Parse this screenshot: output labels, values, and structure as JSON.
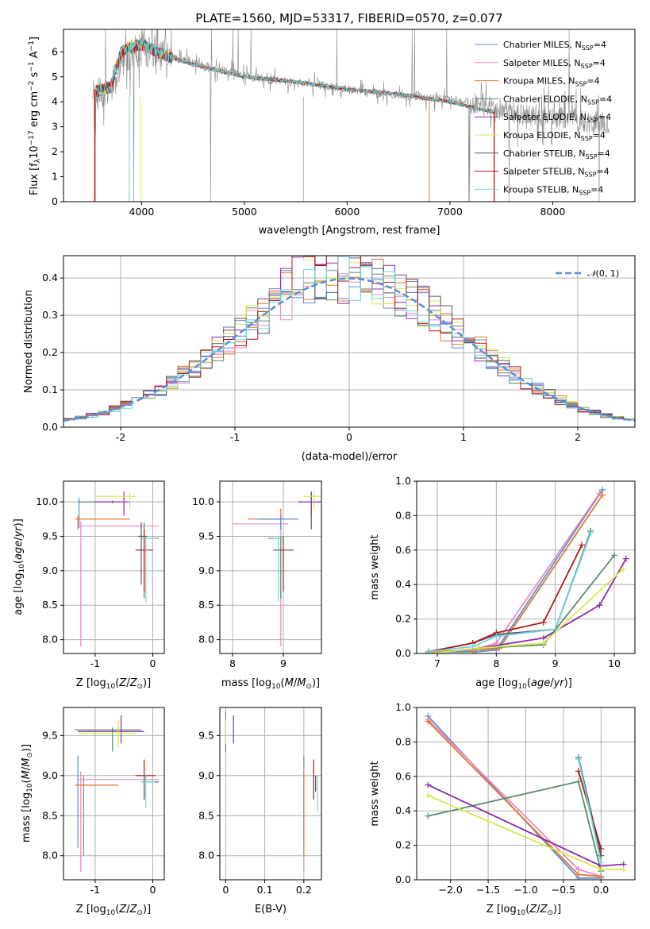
{
  "colors": {
    "Chabrier MILES": "#5b8ed6",
    "Salpeter MILES": "#e98ac4",
    "Kroupa MILES": "#e8782a",
    "Chabrier ELODIE": "#5e8a6a",
    "Salpeter ELODIE": "#8e2aa8",
    "Kroupa ELODIE": "#d6e84a",
    "Chabrier STELIB": "#505a66",
    "Salpeter STELIB": "#b01818",
    "Kroupa STELIB": "#6fd6d6",
    "data": "#888888",
    "grid": "#b0b0b0",
    "normal": "#5b8ed6"
  },
  "chart_data": [
    {
      "id": "spectrum",
      "type": "line",
      "title": "PLATE=1560, MJD=53317, FIBERID=0570, z=0.077",
      "xlabel": "wavelength [Angstrom, rest frame]",
      "ylabel_html": "Flux [f<tspan font-size='9' dy='3'>λ</tspan><tspan dy='-3'>10</tspan><tspan font-size='9' dy='-5'>−17</tspan><tspan dy='5'> erg cm</tspan><tspan font-size='9' dy='-5'>−2</tspan><tspan dy='5'> s</tspan><tspan font-size='9' dy='-5'>−1</tspan><tspan dy='5'> A</tspan><tspan font-size='9' dy='-5'>−1</tspan><tspan dy='5'>]</tspan>",
      "xlim": [
        3240,
        8800
      ],
      "ylim": [
        0,
        6.9
      ],
      "xticks": [
        4000,
        5000,
        6000,
        7000,
        8000
      ],
      "yticks": [
        0,
        1,
        2,
        3,
        4,
        5,
        6
      ],
      "legend": [
        "Chabrier MILES, N_SSP=4",
        "Salpeter MILES, N_SSP=4",
        "Kroupa MILES, N_SSP=4",
        "Chabrier ELODIE, N_SSP=4",
        "Salpeter ELODIE, N_SSP=4",
        "Kroupa ELODIE, N_SSP=4",
        "Chabrier STELIB, N_SSP=4",
        "Salpeter STELIB, N_SSP=4",
        "Kroupa STELIB, N_SSP=4"
      ],
      "model_continuum": [
        [
          3550,
          4.4
        ],
        [
          3700,
          4.6
        ],
        [
          3800,
          6.0
        ],
        [
          3900,
          6.2
        ],
        [
          4000,
          6.3
        ],
        [
          4200,
          5.9
        ],
        [
          4500,
          5.5
        ],
        [
          5000,
          5.0
        ],
        [
          5500,
          4.8
        ],
        [
          6000,
          4.5
        ],
        [
          6500,
          4.3
        ],
        [
          7000,
          4.0
        ],
        [
          7300,
          3.7
        ],
        [
          7430,
          3.6
        ]
      ],
      "data_continuum": [
        [
          3520,
          4.2
        ],
        [
          3700,
          4.6
        ],
        [
          3850,
          5.9
        ],
        [
          4000,
          6.1
        ],
        [
          4300,
          5.8
        ],
        [
          4700,
          5.3
        ],
        [
          5200,
          4.9
        ],
        [
          5700,
          4.7
        ],
        [
          6200,
          4.4
        ],
        [
          6700,
          4.2
        ],
        [
          7200,
          4.0
        ],
        [
          7700,
          3.5
        ],
        [
          8200,
          3.3
        ],
        [
          8550,
          3.1
        ]
      ]
    },
    {
      "id": "histogram",
      "type": "bar",
      "xlabel": "(data-model)/error",
      "ylabel": "Normed distribution",
      "xlim": [
        -2.5,
        2.5
      ],
      "ylim": [
        0,
        0.46
      ],
      "xticks": [
        -2,
        -1,
        0,
        1,
        2
      ],
      "yticks": [
        0.0,
        0.1,
        0.2,
        0.3,
        0.4
      ],
      "legend": "N(0,1)",
      "bin_width": 0.1
    },
    {
      "id": "age_vs_Z",
      "type": "scatter",
      "xlabel": "Z [log10(Z/Z⊙)]",
      "ylabel": "age [log10(age/yr)]",
      "xlim": [
        -1.55,
        0.2
      ],
      "ylim": [
        7.8,
        10.3
      ],
      "xticks": [
        -1,
        0
      ],
      "yticks": [
        8.0,
        8.5,
        9.0,
        9.5,
        10.0
      ]
    },
    {
      "id": "age_vs_mass",
      "type": "scatter",
      "xlabel": "mass [log10(M/M⊙)]",
      "xlim": [
        7.75,
        9.75
      ],
      "ylim": [
        7.8,
        10.3
      ],
      "xticks": [
        8,
        9
      ],
      "yticks": [
        8.0,
        8.5,
        9.0,
        9.5,
        10.0
      ]
    },
    {
      "id": "mw_vs_age",
      "type": "line",
      "xlabel": "age [log10(age/yr)]",
      "ylabel": "mass weight",
      "xlim": [
        6.65,
        10.35
      ],
      "ylim": [
        0,
        1.0
      ],
      "xticks": [
        7,
        8,
        9,
        10
      ],
      "yticks": [
        0.0,
        0.2,
        0.4,
        0.6,
        0.8,
        1.0
      ],
      "series": [
        {
          "name": "Chabrier MILES",
          "x": [
            6.85,
            7.65,
            8.0,
            9.8
          ],
          "y": [
            0.01,
            0.01,
            0.02,
            0.95
          ]
        },
        {
          "name": "Salpeter MILES",
          "x": [
            6.85,
            7.6,
            8.0,
            9.75
          ],
          "y": [
            0.01,
            0.02,
            0.06,
            0.93
          ]
        },
        {
          "name": "Kroupa MILES",
          "x": [
            6.85,
            7.6,
            8.05,
            9.8
          ],
          "y": [
            0.01,
            0.02,
            0.03,
            0.92
          ]
        },
        {
          "name": "Chabrier ELODIE",
          "x": [
            6.85,
            7.7,
            8.8,
            10.0
          ],
          "y": [
            0.0,
            0.03,
            0.05,
            0.57
          ]
        },
        {
          "name": "Salpeter ELODIE",
          "x": [
            6.85,
            7.7,
            8.8,
            9.75,
            10.2
          ],
          "y": [
            0.0,
            0.03,
            0.09,
            0.28,
            0.55
          ]
        },
        {
          "name": "Kroupa ELODIE",
          "x": [
            6.85,
            7.7,
            8.8,
            10.15
          ],
          "y": [
            0.0,
            0.03,
            0.06,
            0.49
          ]
        },
        {
          "name": "Chabrier STELIB",
          "x": [
            6.85,
            7.6,
            8.0,
            9.0,
            9.6
          ],
          "y": [
            0.01,
            0.06,
            0.11,
            0.14,
            0.71
          ]
        },
        {
          "name": "Salpeter STELIB",
          "x": [
            6.85,
            7.6,
            8.0,
            8.8,
            9.45
          ],
          "y": [
            0.01,
            0.06,
            0.12,
            0.18,
            0.63
          ]
        },
        {
          "name": "Kroupa STELIB",
          "x": [
            6.85,
            7.6,
            8.0,
            9.0,
            9.6
          ],
          "y": [
            0.01,
            0.04,
            0.1,
            0.14,
            0.7
          ]
        }
      ]
    },
    {
      "id": "mass_vs_Z",
      "type": "scatter",
      "xlabel": "Z [log10(Z/Z⊙)]",
      "ylabel": "mass [log10(M/M⊙)]",
      "xlim": [
        -1.55,
        0.2
      ],
      "ylim": [
        7.7,
        9.85
      ],
      "xticks": [
        -1,
        0
      ],
      "yticks": [
        8.0,
        8.5,
        9.0,
        9.5
      ]
    },
    {
      "id": "mass_vs_ebv",
      "type": "scatter",
      "xlabel": "E(B-V)",
      "xlim": [
        -0.015,
        0.245
      ],
      "ylim": [
        7.7,
        9.85
      ],
      "xticks": [
        0.0,
        0.1,
        0.2
      ],
      "yticks": [
        8.0,
        8.5,
        9.0,
        9.5
      ]
    },
    {
      "id": "mw_vs_Z",
      "type": "line",
      "xlabel": "Z [log10(Z/Z⊙)]",
      "ylabel": "mass weight",
      "xlim": [
        -2.45,
        0.45
      ],
      "ylim": [
        0,
        1.0
      ],
      "xticks": [
        -2.0,
        -1.5,
        -1.0,
        -0.5,
        0.0
      ],
      "yticks": [
        0.0,
        0.2,
        0.4,
        0.6,
        0.8,
        1.0
      ],
      "series": [
        {
          "name": "Chabrier MILES",
          "x": [
            -2.3,
            -0.3,
            0.0
          ],
          "y": [
            0.95,
            0.01,
            0.01
          ]
        },
        {
          "name": "Salpeter MILES",
          "x": [
            -2.3,
            -0.3,
            0.0
          ],
          "y": [
            0.93,
            0.06,
            0.02
          ]
        },
        {
          "name": "Kroupa MILES",
          "x": [
            -2.3,
            -0.3,
            0.0
          ],
          "y": [
            0.92,
            0.03,
            0.02
          ]
        },
        {
          "name": "Chabrier ELODIE",
          "x": [
            -2.3,
            -0.3,
            0.0
          ],
          "y": [
            0.37,
            0.57,
            0.05
          ]
        },
        {
          "name": "Salpeter ELODIE",
          "x": [
            -2.3,
            0.0,
            0.3
          ],
          "y": [
            0.55,
            0.08,
            0.09
          ]
        },
        {
          "name": "Kroupa ELODIE",
          "x": [
            -2.3,
            0.0,
            0.3
          ],
          "y": [
            0.49,
            0.06,
            0.06
          ]
        },
        {
          "name": "Chabrier STELIB",
          "x": [
            -0.3,
            0.0
          ],
          "y": [
            0.71,
            0.14
          ]
        },
        {
          "name": "Salpeter STELIB",
          "x": [
            -0.3,
            0.0
          ],
          "y": [
            0.63,
            0.18
          ]
        },
        {
          "name": "Kroupa STELIB",
          "x": [
            -0.3,
            0.0
          ],
          "y": [
            0.7,
            0.1
          ]
        }
      ]
    }
  ]
}
